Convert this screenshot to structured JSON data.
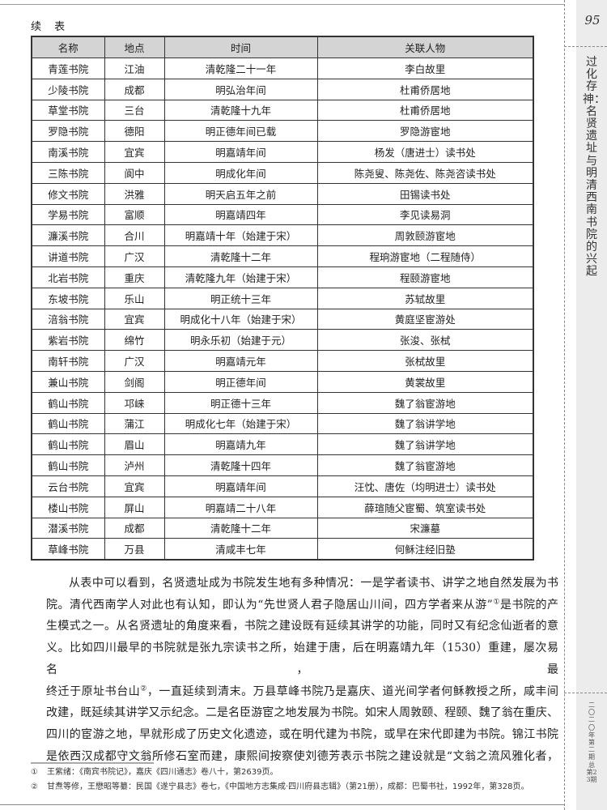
{
  "header": {
    "continued_label": "续 表",
    "page_number": "95"
  },
  "sidebar": {
    "title": "过化存神：名贤遗址与明清西南书院的兴起",
    "issue": "二〇二〇年第二期 总第23期"
  },
  "table": {
    "columns": [
      "名称",
      "地点",
      "时间",
      "关联人物"
    ],
    "rows": [
      [
        "青莲书院",
        "江油",
        "清乾隆二十一年",
        "李白故里"
      ],
      [
        "少陵书院",
        "成都",
        "明弘治年间",
        "杜甫侨居地"
      ],
      [
        "草堂书院",
        "三台",
        "清乾隆十九年",
        "杜甫侨居地"
      ],
      [
        "罗隐书院",
        "德阳",
        "明正德年间已载",
        "罗隐游宦地"
      ],
      [
        "南溪书院",
        "宜宾",
        "明嘉靖年间",
        "杨发（唐进士）读书处"
      ],
      [
        "三陈书院",
        "阆中",
        "明成化年间",
        "陈尧叟、陈尧佐、陈尧咨读书处"
      ],
      [
        "修文书院",
        "洪雅",
        "明天启五年之前",
        "田锡读书处"
      ],
      [
        "学易书院",
        "富顺",
        "明嘉靖四年",
        "李见读易洞"
      ],
      [
        "濂溪书院",
        "合川",
        "明嘉靖十年（始建于宋）",
        "周敦颐游宦地"
      ],
      [
        "讲道书院",
        "广汉",
        "清乾隆十二年",
        "程珦游宦地（二程随侍）"
      ],
      [
        "北岩书院",
        "重庆",
        "清乾隆九年（始建于宋）",
        "程颐游宦地"
      ],
      [
        "东坡书院",
        "乐山",
        "明正统十三年",
        "苏轼故里"
      ],
      [
        "涪翁书院",
        "宜宾",
        "明成化十八年（始建于宋）",
        "黄庭坚宦游处"
      ],
      [
        "紫岩书院",
        "绵竹",
        "明永乐初（始建于元）",
        "张浚、张栻"
      ],
      [
        "南轩书院",
        "广汉",
        "明嘉靖元年",
        "张栻故里"
      ],
      [
        "兼山书院",
        "剑阁",
        "明正德年间",
        "黄裳故里"
      ],
      [
        "鹤山书院",
        "邛崃",
        "明正德十三年",
        "魏了翁宦游地"
      ],
      [
        "鹤山书院",
        "蒲江",
        "明成化七年（始建于宋）",
        "魏了翁讲学地"
      ],
      [
        "鹤山书院",
        "眉山",
        "明嘉靖九年",
        "魏了翁讲学地"
      ],
      [
        "鹤山书院",
        "泸州",
        "清乾隆十四年",
        "魏了翁宦游地"
      ],
      [
        "云台书院",
        "宜宾",
        "明嘉靖年间",
        "汪忱、唐佐（均明进士）读书处"
      ],
      [
        "楼山书院",
        "屏山",
        "明嘉靖二十八年",
        "薛瑄随父宦蜀、筑室读书处"
      ],
      [
        "潜溪书院",
        "成都",
        "清乾隆十二年",
        "宋濂墓"
      ],
      [
        "草峰书院",
        "万县",
        "清咸丰七年",
        "何稣注经旧塾"
      ]
    ]
  },
  "body": {
    "lines": [
      "从表中可以看到，名贤遗址成为书院发生地有多种情况：一是学者读书、讲学之地自然发展为书",
      "院。清代西南学人对此也有认知，即认为“先世贤人君子隐居山川间，四方学者来从游”",
      "生模式之一。从名贤遗址的角度来看，书院之建设既有延续其讲学的功能，同时又有纪念仙逝者的意",
      "义。比如四川最早的书院就是张九宗读书之所，始建于唐，后在明嘉靖九年（1530）重建，屡次易名，最",
      "终迁于原址书台山",
      "改建，既延续其讲学又示纪念。二是名臣游宦之地发展为书院。如宋人周敦颐、程颐、魏了翁在重庆、",
      "四川的宦游之地，早就形成了历史文化遗迹，或在明代建为书院，或早在宋代即建为书院。锦江书院",
      "是依西汉成都守文翁所修石室而建，康熙间按察使刘德芳表示书院之建设就是“文翁之流风雅化者，"
    ],
    "line2_after_note": "是书院的产",
    "line5_after_note": "，一直延续到清末。万县草峰书院乃是嘉庆、道光间学者何稣教授之所，咸丰间",
    "note_marks": [
      "①",
      "②"
    ]
  },
  "footnotes": [
    {
      "num": "①",
      "text": "王紫绪：《南宾书院记》，嘉庆《四川通志》卷八十，第2639页。"
    },
    {
      "num": "②",
      "text": "甘焘等修，王懋昭等纂：民国《遂宁县志》卷七，《中国地方志集成·四川府县志辑》（第21册），成都：巴蜀书社，1992年，第328页。"
    }
  ]
}
